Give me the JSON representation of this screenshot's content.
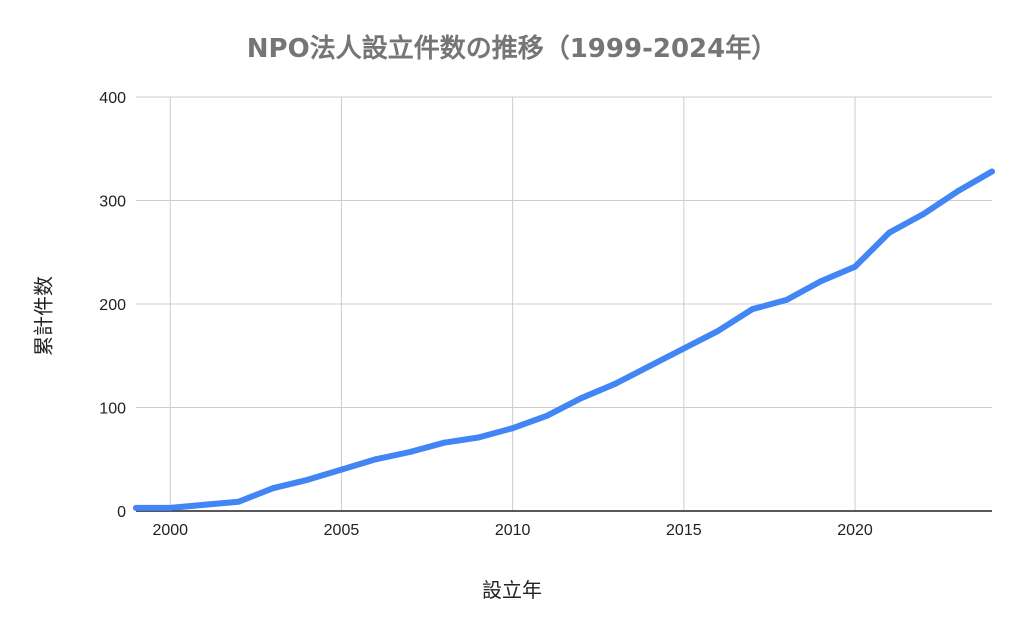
{
  "chart_data": {
    "type": "line",
    "title": "NPO法人設立件数の推移（1999-2024年）",
    "xlabel": "設立年",
    "ylabel": "累計件数",
    "xlim": [
      1999,
      2024
    ],
    "ylim": [
      0,
      400
    ],
    "x_ticks": [
      2000,
      2005,
      2010,
      2015,
      2020
    ],
    "y_ticks": [
      0,
      100,
      200,
      300,
      400
    ],
    "grid": true,
    "legend": "none",
    "series": [
      {
        "color": "#4285f4",
        "x": [
          1999,
          2000,
          2001,
          2002,
          2003,
          2004,
          2005,
          2006,
          2007,
          2008,
          2009,
          2010,
          2011,
          2012,
          2013,
          2014,
          2015,
          2016,
          2017,
          2018,
          2019,
          2020,
          2021,
          2022,
          2023,
          2024
        ],
        "values": [
          3,
          3,
          6,
          9,
          22,
          30,
          40,
          50,
          57,
          66,
          71,
          80,
          92,
          109,
          123,
          140,
          157,
          174,
          195,
          204,
          222,
          236,
          269,
          287,
          309,
          328
        ]
      }
    ]
  },
  "colors": {
    "line": "#4285f4",
    "grid": "#cccccc",
    "axis": "#222222",
    "title": "#757575"
  }
}
